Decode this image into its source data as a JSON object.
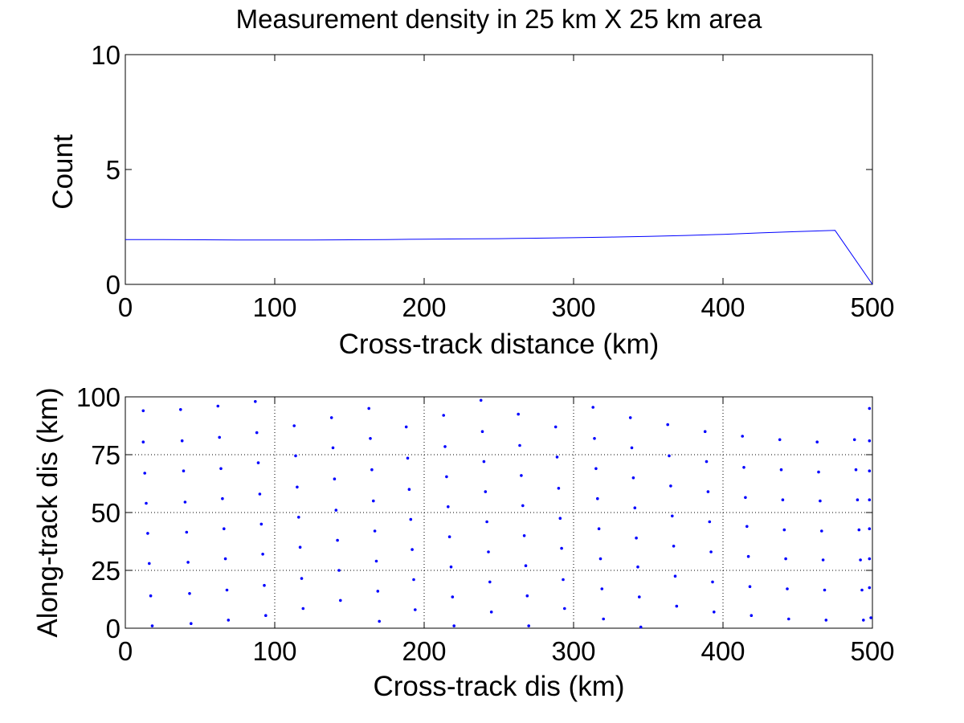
{
  "chart_data": [
    {
      "type": "line",
      "title": "Measurement density in 25 km X 25 km area",
      "xlabel": "Cross-track distance (km)",
      "ylabel": "Count",
      "xlim": [
        0,
        500
      ],
      "ylim": [
        0,
        10
      ],
      "xticks": [
        "0",
        "100",
        "200",
        "300",
        "400",
        "500"
      ],
      "yticks": [
        "0",
        "5",
        "10"
      ],
      "grid": false,
      "color": "#0000ff",
      "series": [
        {
          "x": [
            0,
            25,
            50,
            75,
            100,
            125,
            150,
            175,
            200,
            225,
            250,
            275,
            300,
            325,
            350,
            375,
            400,
            425,
            450,
            475,
            500
          ],
          "values": [
            1.95,
            1.95,
            1.94,
            1.93,
            1.93,
            1.93,
            1.94,
            1.95,
            1.97,
            1.98,
            1.99,
            2.01,
            2.03,
            2.06,
            2.09,
            2.13,
            2.18,
            2.24,
            2.3,
            2.35,
            0
          ]
        }
      ]
    },
    {
      "type": "scatter",
      "title": "",
      "xlabel": "Cross-track dis (km)",
      "ylabel": "Along-track dis (km)",
      "xlim": [
        0,
        500
      ],
      "ylim": [
        0,
        100
      ],
      "xticks": [
        "0",
        "100",
        "200",
        "300",
        "400",
        "500"
      ],
      "yticks": [
        "0",
        "25",
        "50",
        "75",
        "100"
      ],
      "grid": true,
      "color": "#0000ff",
      "marker": ".",
      "points": [
        [
          12,
          94
        ],
        [
          37,
          94.5
        ],
        [
          62,
          96
        ],
        [
          87,
          98
        ],
        [
          12,
          80.5
        ],
        [
          38,
          81
        ],
        [
          63,
          82.5
        ],
        [
          88,
          84.5
        ],
        [
          113,
          87.5
        ],
        [
          138,
          91
        ],
        [
          163,
          95
        ],
        [
          188,
          87
        ],
        [
          213,
          92
        ],
        [
          238,
          98.5
        ],
        [
          263,
          92.5
        ],
        [
          288,
          87
        ],
        [
          313,
          95.5
        ],
        [
          338,
          91
        ],
        [
          363,
          88
        ],
        [
          388,
          85
        ],
        [
          413,
          83
        ],
        [
          438,
          81.5
        ],
        [
          463,
          80.5
        ],
        [
          488,
          81.5
        ],
        [
          13,
          67
        ],
        [
          39,
          68
        ],
        [
          64,
          69
        ],
        [
          89,
          71.5
        ],
        [
          114,
          74.5
        ],
        [
          139,
          78
        ],
        [
          164,
          82
        ],
        [
          189,
          73.5
        ],
        [
          214,
          78.5
        ],
        [
          239,
          85
        ],
        [
          264,
          79
        ],
        [
          289,
          74
        ],
        [
          314,
          82
        ],
        [
          339,
          78
        ],
        [
          364,
          74.5
        ],
        [
          389,
          72
        ],
        [
          414,
          69.5
        ],
        [
          439,
          68.5
        ],
        [
          464,
          67.5
        ],
        [
          489,
          68.5
        ],
        [
          14,
          54
        ],
        [
          40,
          54.5
        ],
        [
          65,
          56
        ],
        [
          90,
          58
        ],
        [
          115,
          61
        ],
        [
          140,
          64.5
        ],
        [
          165,
          68.5
        ],
        [
          190,
          60
        ],
        [
          215,
          65.5
        ],
        [
          240,
          72
        ],
        [
          265,
          66
        ],
        [
          290,
          60.5
        ],
        [
          315,
          69
        ],
        [
          340,
          65
        ],
        [
          365,
          61.5
        ],
        [
          390,
          59
        ],
        [
          415,
          56.5
        ],
        [
          440,
          55.5
        ],
        [
          465,
          55
        ],
        [
          490,
          55.5
        ],
        [
          498,
          81
        ],
        [
          498,
          95
        ],
        [
          15,
          41
        ],
        [
          41,
          41.5
        ],
        [
          66,
          43
        ],
        [
          91,
          45
        ],
        [
          116,
          48
        ],
        [
          141,
          51
        ],
        [
          166,
          55
        ],
        [
          191,
          47
        ],
        [
          216,
          52.5
        ],
        [
          241,
          59
        ],
        [
          266,
          53
        ],
        [
          291,
          47.5
        ],
        [
          316,
          56
        ],
        [
          341,
          52
        ],
        [
          366,
          48.5
        ],
        [
          391,
          46
        ],
        [
          416,
          44
        ],
        [
          441,
          42.5
        ],
        [
          466,
          42
        ],
        [
          491,
          42.5
        ],
        [
          498,
          68
        ],
        [
          16,
          28
        ],
        [
          42,
          28.5
        ],
        [
          67,
          30
        ],
        [
          92,
          32
        ],
        [
          117,
          35
        ],
        [
          142,
          38
        ],
        [
          167,
          42
        ],
        [
          192,
          34
        ],
        [
          217,
          39.5
        ],
        [
          242,
          46
        ],
        [
          267,
          40
        ],
        [
          292,
          34.5
        ],
        [
          317,
          43
        ],
        [
          342,
          39
        ],
        [
          367,
          35.5
        ],
        [
          392,
          33
        ],
        [
          417,
          31
        ],
        [
          442,
          30
        ],
        [
          467,
          29.5
        ],
        [
          492,
          29.5
        ],
        [
          498,
          55.5
        ],
        [
          17,
          14
        ],
        [
          43,
          15
        ],
        [
          68,
          16.5
        ],
        [
          93,
          18.5
        ],
        [
          118,
          21.5
        ],
        [
          143,
          25
        ],
        [
          168,
          29
        ],
        [
          193,
          21
        ],
        [
          218,
          26.5
        ],
        [
          243,
          33
        ],
        [
          268,
          27
        ],
        [
          293,
          21
        ],
        [
          318,
          30
        ],
        [
          343,
          26.5
        ],
        [
          368,
          22.5
        ],
        [
          393,
          20
        ],
        [
          418,
          18
        ],
        [
          443,
          17
        ],
        [
          468,
          16.5
        ],
        [
          493,
          16.5
        ],
        [
          498,
          43
        ],
        [
          18,
          1
        ],
        [
          44,
          2
        ],
        [
          69,
          3.5
        ],
        [
          94,
          5.5
        ],
        [
          119,
          8.5
        ],
        [
          144,
          12
        ],
        [
          169,
          16
        ],
        [
          194,
          8
        ],
        [
          219,
          13.5
        ],
        [
          244,
          20
        ],
        [
          269,
          14
        ],
        [
          294,
          8.5
        ],
        [
          319,
          17
        ],
        [
          344,
          13.5
        ],
        [
          369,
          9.5
        ],
        [
          394,
          7
        ],
        [
          419,
          5.5
        ],
        [
          444,
          4
        ],
        [
          469,
          3.5
        ],
        [
          494,
          3.5
        ],
        [
          498,
          30
        ],
        [
          170,
          3
        ],
        [
          220,
          1
        ],
        [
          245,
          7
        ],
        [
          270,
          1
        ],
        [
          320,
          4
        ],
        [
          345,
          0.5
        ],
        [
          498,
          17.5
        ],
        [
          499,
          4.5
        ]
      ]
    }
  ]
}
